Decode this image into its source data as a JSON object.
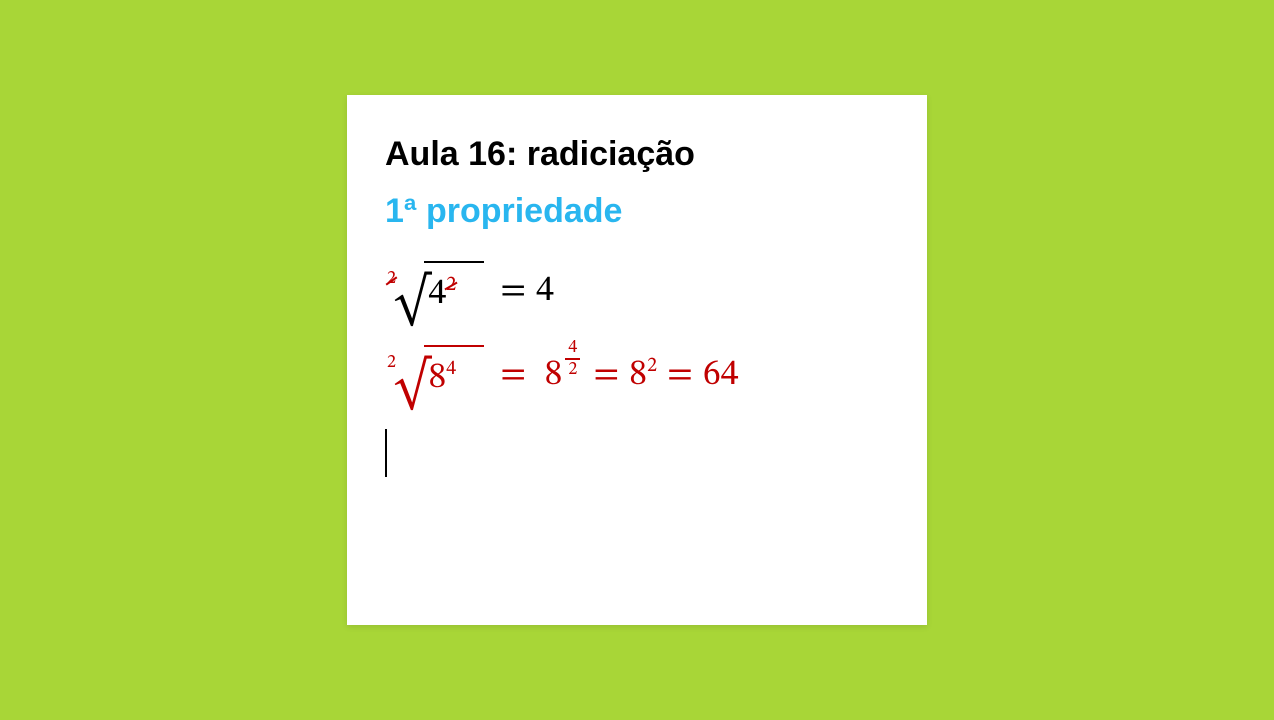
{
  "colors": {
    "background": "#a8d637",
    "card": "#ffffff",
    "title": "#000000",
    "subtitle": "#29b6ef",
    "math_black": "#000000",
    "math_red": "#c00000"
  },
  "title": "Aula 16: radiciação",
  "subtitle": "1ª propriedade",
  "equations": {
    "eq1": {
      "index": "2",
      "index_struck": true,
      "radicand_base": "4",
      "radicand_exp": "2",
      "radicand_exp_struck": true,
      "equals": "=",
      "rhs": "4",
      "color": "black"
    },
    "eq2": {
      "index": "2",
      "radicand_base": "8",
      "radicand_exp": "4",
      "equals1": "=",
      "step1_base": "8",
      "step1_frac_num": "4",
      "step1_frac_den": "2",
      "equals2": "=",
      "step2_base": "8",
      "step2_exp": "2",
      "equals3": "=",
      "result": "64",
      "color": "red"
    }
  }
}
